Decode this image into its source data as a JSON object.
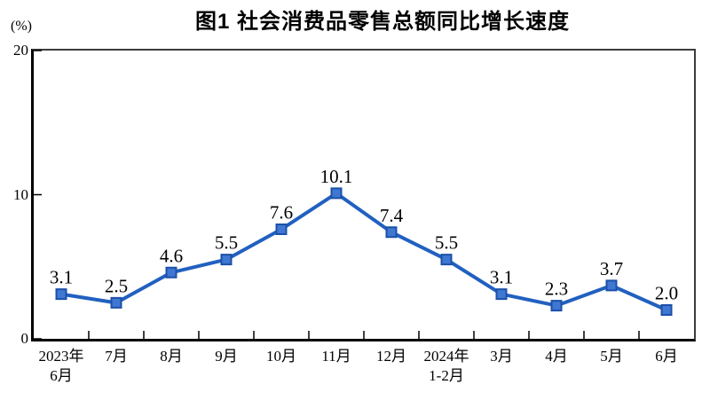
{
  "chart_data": {
    "type": "line",
    "title": "图1  社会消费品零售总额同比增长速度",
    "unit_label": "(%)",
    "categories": [
      [
        "2023年",
        "6月"
      ],
      [
        "7月"
      ],
      [
        "8月"
      ],
      [
        "9月"
      ],
      [
        "10月"
      ],
      [
        "11月"
      ],
      [
        "12月"
      ],
      [
        "2024年",
        "1-2月"
      ],
      [
        "3月"
      ],
      [
        "4月"
      ],
      [
        "5月"
      ],
      [
        "6月"
      ]
    ],
    "values": [
      3.1,
      2.5,
      4.6,
      5.5,
      7.6,
      10.1,
      7.4,
      5.5,
      3.1,
      2.3,
      3.7,
      2.0
    ],
    "data_labels": [
      "3.1",
      "2.5",
      "4.6",
      "5.5",
      "7.6",
      "10.1",
      "7.4",
      "5.5",
      "3.1",
      "2.3",
      "3.7",
      "2.0"
    ],
    "ylim": [
      0,
      20
    ],
    "yticks": [
      20,
      10,
      0
    ],
    "grid": false,
    "legend": false,
    "colors": {
      "line": "#2160c0",
      "marker_fill": "#3f77d2",
      "marker_border": "#1b50a8",
      "text": "#000000",
      "frame": "#3c3c3c",
      "axis": "#000000"
    }
  }
}
